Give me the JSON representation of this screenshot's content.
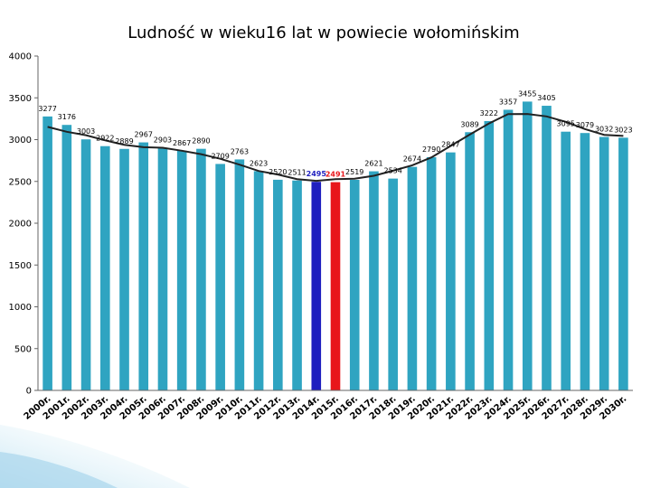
{
  "chart_data": {
    "type": "bar",
    "title": "Ludność w wieku16 lat w powiecie wołomińskim",
    "xlabel": "",
    "ylabel": "",
    "ylim": [
      0,
      4000
    ],
    "yticks": [
      0,
      500,
      1000,
      1500,
      2000,
      2500,
      3000,
      3500,
      4000
    ],
    "ytick_labels": [
      "0",
      "500",
      "1000",
      "1500",
      "2000",
      "2500",
      "3000",
      "3500",
      "4000"
    ],
    "grid": false,
    "legend": "none",
    "trendline": true,
    "colors": {
      "bar": "#2fa4c1",
      "highlight_1": "#1f1fbf",
      "highlight_2": "#e8161b",
      "trend": "#222222",
      "axis": "#666666"
    },
    "categories": [
      "2000r.",
      "2001r.",
      "2002r.",
      "2003r.",
      "2004r.",
      "2005r.",
      "2006r.",
      "2007r.",
      "2008r.",
      "2009r.",
      "2010r.",
      "2011r.",
      "2012r.",
      "2013r.",
      "2014r.",
      "2015r.",
      "2016r.",
      "2017r.",
      "2018r.",
      "2019r.",
      "2020r.",
      "2021r.",
      "2022r.",
      "2023r.",
      "2024r.",
      "2025r.",
      "2026r.",
      "2027r.",
      "2028r.",
      "2029r.",
      "2030r."
    ],
    "values": [
      3277,
      3176,
      3003,
      2922,
      2889,
      2967,
      2903,
      2867,
      2890,
      2709,
      2763,
      2623,
      2520,
      2511,
      2495,
      2491,
      2519,
      2621,
      2534,
      2674,
      2790,
      2847,
      3089,
      3222,
      3357,
      3455,
      3405,
      3095,
      3079,
      3032,
      3023
    ],
    "data_labels": [
      "3277",
      "3176",
      "3003",
      "2922",
      "2889",
      "2967",
      "2903",
      "2867",
      "2890",
      "2709",
      "2763",
      "2623",
      "2520",
      "2511",
      "2495",
      "2491",
      "2519",
      "2621",
      "2534",
      "2674",
      "2790",
      "2847",
      "3089",
      "3222",
      "3357",
      "3455",
      "3405",
      "3095",
      "3079",
      "3032",
      "3023"
    ],
    "highlight": [
      {
        "index": 14,
        "color": "#1f1fbf"
      },
      {
        "index": 15,
        "color": "#e8161b"
      }
    ]
  }
}
